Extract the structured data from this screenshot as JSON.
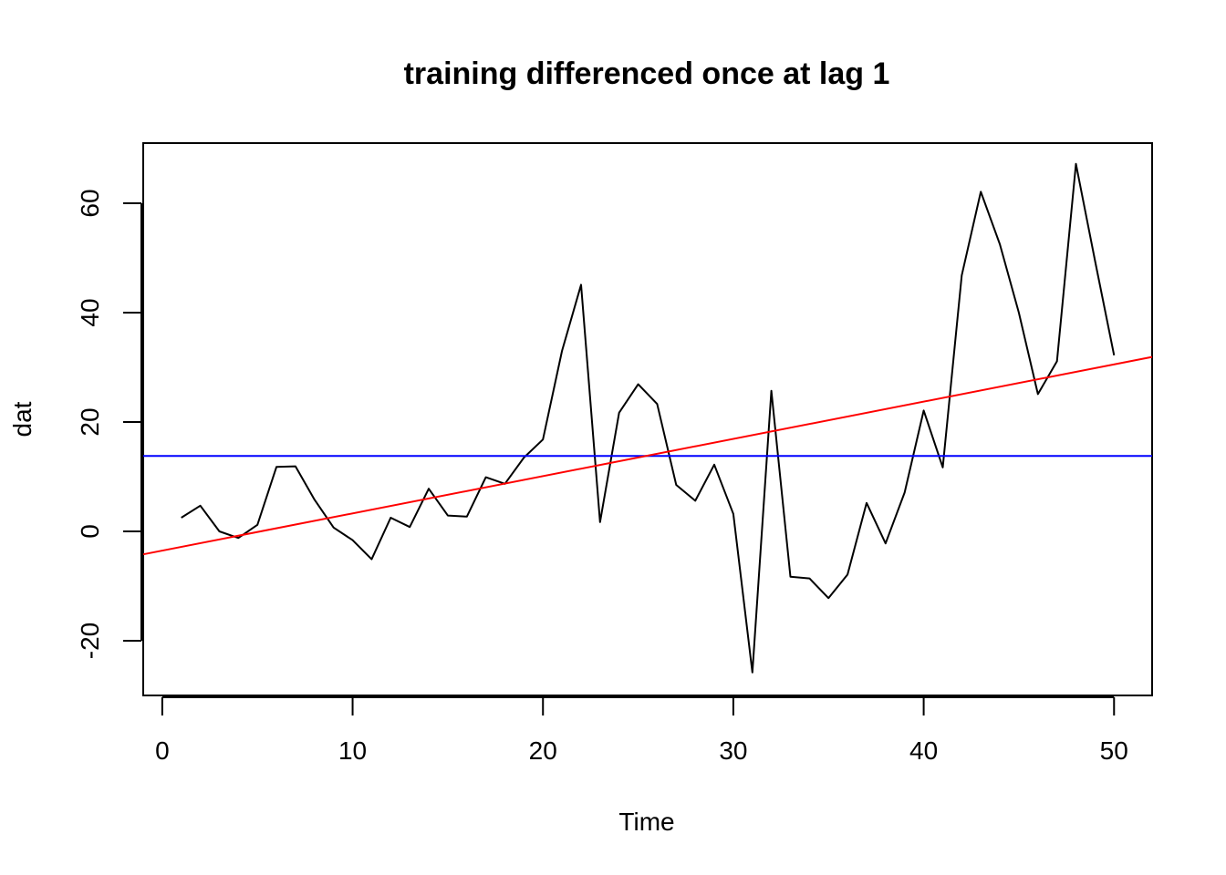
{
  "chart_data": {
    "type": "line",
    "title": "training differenced once at lag 1",
    "xlabel": "Time",
    "ylabel": "dat",
    "xlim": [
      -1,
      52
    ],
    "ylim": [
      -30,
      71
    ],
    "x_ticks": [
      0,
      10,
      20,
      30,
      40,
      50
    ],
    "y_ticks": [
      -20,
      0,
      20,
      40,
      60
    ],
    "grid": false,
    "series": [
      {
        "color": "#000000",
        "x": [
          1,
          2,
          3,
          4,
          5,
          6,
          7,
          8,
          9,
          10,
          11,
          12,
          13,
          14,
          15,
          16,
          17,
          18,
          19,
          20,
          21,
          22,
          23,
          24,
          25,
          26,
          27,
          28,
          29,
          30,
          31,
          32,
          33,
          34,
          35,
          36,
          37,
          38,
          39,
          40,
          41,
          42,
          43,
          44,
          45,
          46,
          47,
          48,
          49,
          50
        ],
        "values": [
          2.5,
          4.7,
          0,
          -1.2,
          1.2,
          11.8,
          11.9,
          5.8,
          0.7,
          -1.6,
          -5.1,
          2.5,
          0.8,
          7.8,
          2.9,
          2.7,
          9.9,
          8.7,
          13.5,
          16.8,
          33,
          45.1,
          1.7,
          21.7,
          26.9,
          23.3,
          8.5,
          5.6,
          12.2,
          3.2,
          -25.8,
          25.7,
          -8.3,
          -8.6,
          -12.2,
          -7.9,
          5.2,
          -2.2,
          7.1,
          22.1,
          11.7,
          46.8,
          62.1,
          52.5,
          40,
          25.1,
          31.1,
          67.2,
          49.5,
          32.2
        ]
      },
      {
        "color": "#0000ff",
        "type": "hline",
        "y": 13.8
      },
      {
        "color": "#ff0000",
        "type": "abline",
        "x": [
          -1,
          52
        ],
        "values": [
          -4.2,
          31.9
        ]
      }
    ]
  }
}
